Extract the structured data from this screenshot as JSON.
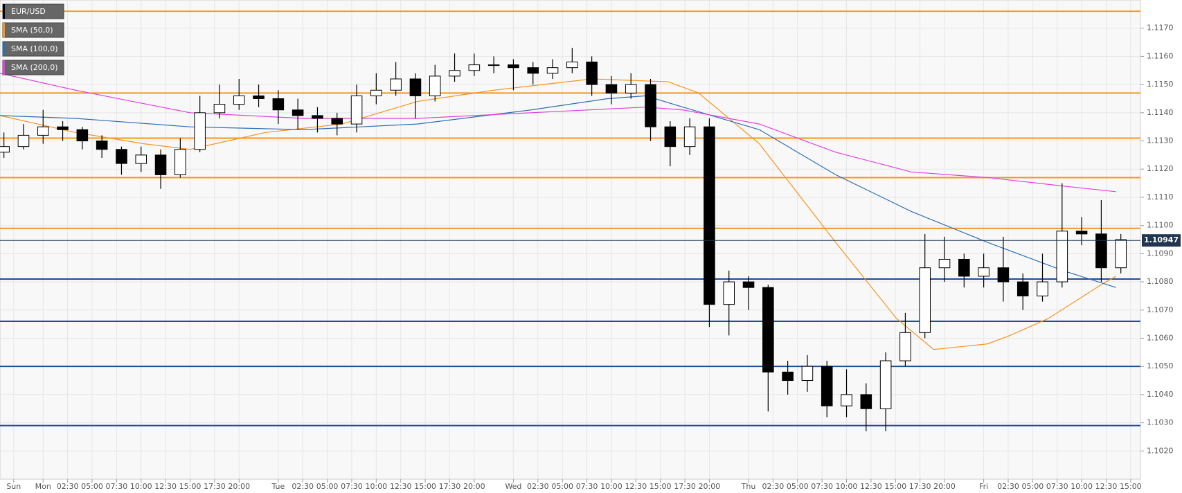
{
  "chart_data": {
    "type": "candlestick",
    "xlim": [
      -4.4,
      112
    ],
    "ylim": [
      1.101,
      1.118
    ],
    "yticks": [
      {
        "value": 1.102,
        "label": "1.1020"
      },
      {
        "value": 1.103,
        "label": "1.1030"
      },
      {
        "value": 1.104,
        "label": "1.1040"
      },
      {
        "value": 1.105,
        "label": "1.1050"
      },
      {
        "value": 1.106,
        "label": "1.1060"
      },
      {
        "value": 1.107,
        "label": "1.1070"
      },
      {
        "value": 1.108,
        "label": "1.1080"
      },
      {
        "value": 1.109,
        "label": "1.1090"
      },
      {
        "value": 1.11,
        "label": "1.1100"
      },
      {
        "value": 1.111,
        "label": "1.1110"
      },
      {
        "value": 1.112,
        "label": "1.1120"
      },
      {
        "value": 1.113,
        "label": "1.1130"
      },
      {
        "value": 1.114,
        "label": "1.1140"
      },
      {
        "value": 1.115,
        "label": "1.1150"
      },
      {
        "value": 1.116,
        "label": "1.1160"
      },
      {
        "value": 1.117,
        "label": "1.1170"
      }
    ],
    "xticks": [
      {
        "value": -3,
        "label": "Sun"
      },
      {
        "value": 0,
        "label": "Mon"
      },
      {
        "value": 2.5,
        "label": "02:30"
      },
      {
        "value": 5,
        "label": "05:00"
      },
      {
        "value": 7.5,
        "label": "07:30"
      },
      {
        "value": 10,
        "label": "10:00"
      },
      {
        "value": 12.5,
        "label": "12:30"
      },
      {
        "value": 15,
        "label": "15:00"
      },
      {
        "value": 17.5,
        "label": "17:30"
      },
      {
        "value": 20,
        "label": "20:00"
      },
      {
        "value": 24,
        "label": "Tue"
      },
      {
        "value": 26.5,
        "label": "02:30"
      },
      {
        "value": 29,
        "label": "05:00"
      },
      {
        "value": 31.5,
        "label": "07:30"
      },
      {
        "value": 34,
        "label": "10:00"
      },
      {
        "value": 36.5,
        "label": "12:30"
      },
      {
        "value": 39,
        "label": "15:00"
      },
      {
        "value": 41.5,
        "label": "17:30"
      },
      {
        "value": 44,
        "label": "20:00"
      },
      {
        "value": 48,
        "label": "Wed"
      },
      {
        "value": 50.5,
        "label": "02:30"
      },
      {
        "value": 53,
        "label": "05:00"
      },
      {
        "value": 55.5,
        "label": "07:30"
      },
      {
        "value": 58,
        "label": "10:00"
      },
      {
        "value": 60.5,
        "label": "12:30"
      },
      {
        "value": 63,
        "label": "15:00"
      },
      {
        "value": 65.5,
        "label": "17:30"
      },
      {
        "value": 68,
        "label": "20:00"
      },
      {
        "value": 72,
        "label": "Thu"
      },
      {
        "value": 74.5,
        "label": "02:30"
      },
      {
        "value": 77,
        "label": "05:00"
      },
      {
        "value": 79.5,
        "label": "07:30"
      },
      {
        "value": 82,
        "label": "10:00"
      },
      {
        "value": 84.5,
        "label": "12:30"
      },
      {
        "value": 87,
        "label": "15:00"
      },
      {
        "value": 89.5,
        "label": "17:30"
      },
      {
        "value": 92,
        "label": "20:00"
      },
      {
        "value": 96,
        "label": "Fri"
      },
      {
        "value": 98.5,
        "label": "02:30"
      },
      {
        "value": 101,
        "label": "05:00"
      },
      {
        "value": 103.5,
        "label": "07:30"
      },
      {
        "value": 106,
        "label": "10:00"
      },
      {
        "value": 108.5,
        "label": "12:30"
      },
      {
        "value": 111,
        "label": "15:00"
      }
    ],
    "grid": true,
    "up_color": "#ffffff",
    "down_color": "#000000",
    "last_price": 1.10947,
    "last_price_color": "#1f3550",
    "levels": [
      {
        "value": 1.1176,
        "color": "#f5961e"
      },
      {
        "value": 1.1147,
        "color": "#f5961e"
      },
      {
        "value": 1.1131,
        "color": "#f5961e"
      },
      {
        "value": 1.1117,
        "color": "#f5961e"
      },
      {
        "value": 1.1099,
        "color": "#f5961e"
      },
      {
        "value": 1.1081,
        "color": "#1d4d9e"
      },
      {
        "value": 1.1066,
        "color": "#1d4d9e"
      },
      {
        "value": 1.105,
        "color": "#1d4d9e"
      },
      {
        "value": 1.1029,
        "color": "#1d4d9e"
      }
    ],
    "series": [
      {
        "name": "EUR/USD",
        "color": "#000000",
        "x": [
          -4,
          -2,
          0,
          2,
          4,
          6,
          8,
          10,
          12,
          14,
          16,
          18,
          20,
          22,
          24,
          26,
          28,
          30,
          32,
          34,
          36,
          38,
          40,
          42,
          44,
          46,
          48,
          50,
          52,
          54,
          56,
          58,
          60,
          62,
          64,
          66,
          68,
          70,
          72,
          74,
          76,
          78,
          80,
          82,
          84,
          86,
          88,
          90,
          92,
          94,
          96,
          98,
          100,
          102,
          104,
          106,
          108,
          110
        ],
        "open": [
          1.1126,
          1.1128,
          1.1132,
          1.1135,
          1.1134,
          1.113,
          1.1127,
          1.1122,
          1.1125,
          1.1118,
          1.1127,
          1.114,
          1.1143,
          1.1146,
          1.1145,
          1.1141,
          1.1139,
          1.1138,
          1.1136,
          1.1146,
          1.1148,
          1.1152,
          1.1146,
          1.1153,
          1.1155,
          1.1157,
          1.1157,
          1.1156,
          1.1154,
          1.1156,
          1.1158,
          1.115,
          1.1147,
          1.115,
          1.1135,
          1.1128,
          1.1135,
          1.1072,
          1.108,
          1.1078,
          1.1048,
          1.1045,
          1.105,
          1.1036,
          1.104,
          1.1035,
          1.1052,
          1.1062,
          1.1085,
          1.1088,
          1.1082,
          1.1085,
          1.108,
          1.1075,
          1.108,
          1.1098,
          1.1097,
          1.1085
        ],
        "high": [
          1.1133,
          1.1136,
          1.1141,
          1.1137,
          1.1135,
          1.1132,
          1.1128,
          1.1128,
          1.1127,
          1.1131,
          1.1146,
          1.115,
          1.1152,
          1.115,
          1.1148,
          1.1145,
          1.1142,
          1.114,
          1.115,
          1.1154,
          1.1158,
          1.1154,
          1.1157,
          1.1161,
          1.1161,
          1.116,
          1.1159,
          1.1158,
          1.1159,
          1.1163,
          1.116,
          1.1153,
          1.1154,
          1.1152,
          1.1137,
          1.1138,
          1.1138,
          1.1084,
          1.1082,
          1.1079,
          1.1052,
          1.1054,
          1.1052,
          1.1049,
          1.1044,
          1.1055,
          1.1069,
          1.1097,
          1.1096,
          1.109,
          1.109,
          1.1096,
          1.1083,
          1.109,
          1.1115,
          1.1103,
          1.1109,
          1.1097
        ],
        "low": [
          1.1124,
          1.1127,
          1.1129,
          1.113,
          1.1127,
          1.1124,
          1.1118,
          1.1119,
          1.1113,
          1.1117,
          1.1126,
          1.1138,
          1.1141,
          1.1142,
          1.1136,
          1.1134,
          1.1133,
          1.1132,
          1.1133,
          1.1143,
          1.1146,
          1.1138,
          1.1144,
          1.1151,
          1.1153,
          1.1154,
          1.1148,
          1.115,
          1.1152,
          1.1154,
          1.1146,
          1.1143,
          1.1145,
          1.113,
          1.1121,
          1.1125,
          1.1064,
          1.1061,
          1.107,
          1.1034,
          1.104,
          1.1041,
          1.1032,
          1.1032,
          1.1027,
          1.1027,
          1.105,
          1.106,
          1.108,
          1.1078,
          1.1078,
          1.1073,
          1.107,
          1.1073,
          1.1078,
          1.1093,
          1.108,
          1.1083
        ],
        "close": [
          1.1128,
          1.1132,
          1.1135,
          1.1134,
          1.113,
          1.1127,
          1.1122,
          1.1125,
          1.1118,
          1.1127,
          1.114,
          1.1143,
          1.1146,
          1.1145,
          1.1141,
          1.1139,
          1.1138,
          1.1136,
          1.1146,
          1.1148,
          1.1152,
          1.1146,
          1.1153,
          1.1155,
          1.1157,
          1.1157,
          1.1156,
          1.1154,
          1.1156,
          1.1158,
          1.115,
          1.1147,
          1.115,
          1.1135,
          1.1128,
          1.1135,
          1.1072,
          1.108,
          1.1078,
          1.1048,
          1.1045,
          1.105,
          1.1036,
          1.104,
          1.1035,
          1.1052,
          1.1062,
          1.1085,
          1.1088,
          1.1082,
          1.1085,
          1.108,
          1.1075,
          1.108,
          1.1098,
          1.1097,
          1.1085,
          1.1095
        ]
      },
      {
        "name": "SMA (50,0)",
        "color": "#f7931e",
        "x": [
          -4.4,
          3.3,
          10.3,
          15,
          22.7,
          30.5,
          38.2,
          46,
          56,
          63.8,
          66.9,
          73.1,
          80.9,
          87.1,
          90.9,
          96.4,
          98.7,
          102.6,
          108,
          109.5
        ],
        "values": [
          1.1139,
          1.1133,
          1.1129,
          1.1127,
          1.1133,
          1.1136,
          1.1144,
          1.1148,
          1.1152,
          1.1151,
          1.1147,
          1.1129,
          1.1094,
          1.1067,
          1.1056,
          1.1058,
          1.1061,
          1.1067,
          1.1079,
          1.1082
        ]
      },
      {
        "name": "SMA (100,0)",
        "color": "#2e6db4",
        "x": [
          -4.4,
          3.3,
          15,
          26.6,
          38.2,
          49.8,
          57.6,
          61.5,
          65.3,
          73.1,
          80.9,
          88.6,
          96.4,
          104.1,
          109.5
        ],
        "values": [
          1.1139,
          1.1138,
          1.1135,
          1.1134,
          1.1136,
          1.1141,
          1.1145,
          1.1146,
          1.1142,
          1.1134,
          1.1118,
          1.1105,
          1.1094,
          1.1084,
          1.1078
        ]
      },
      {
        "name": "SMA (200,0)",
        "color": "#e040e0",
        "x": [
          -4.4,
          3.3,
          15,
          26.6,
          38.2,
          49.8,
          61.5,
          65.3,
          73.1,
          80.9,
          88.6,
          96.4,
          104.1,
          109.5
        ],
        "values": [
          1.1154,
          1.1148,
          1.114,
          1.1138,
          1.1138,
          1.114,
          1.1142,
          1.1141,
          1.1136,
          1.1126,
          1.1119,
          1.1117,
          1.1114,
          1.1112
        ]
      }
    ]
  }
}
